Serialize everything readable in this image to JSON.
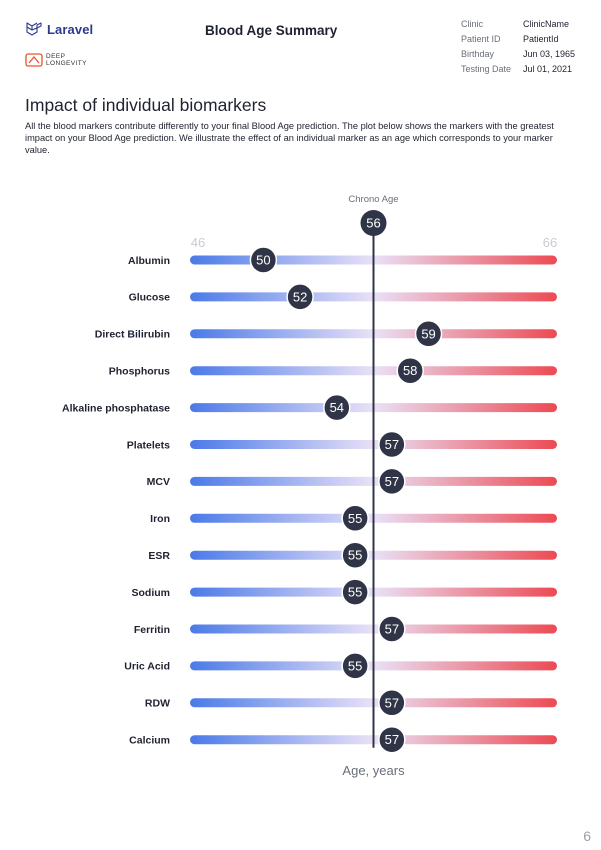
{
  "header": {
    "app_name": "Laravel",
    "partner_line1": "DEEP",
    "partner_line2": "LONGEVITY",
    "title": "Blood Age Summary"
  },
  "info": [
    {
      "label": "Clinic",
      "value": "ClinicName"
    },
    {
      "label": "Patient ID",
      "value": "PatientId"
    },
    {
      "label": "Birthday",
      "value": "Jun 03, 1965"
    },
    {
      "label": "Testing Date",
      "value": "Jul 01, 2021"
    }
  ],
  "section": {
    "title": "Impact of individual biomarkers",
    "description": "All the blood markers contribute differently to your final Blood Age prediction. The plot below shows the markers with the greatest impact on your Blood Age prediction. We illustrate the effect of an individual marker as an age which corresponds to your marker value."
  },
  "chart_data": {
    "type": "scatter",
    "chrono_label": "Chrono Age",
    "chrono_value": 56,
    "xlim": [
      46,
      66
    ],
    "xmin_label": "46",
    "xmax_label": "66",
    "xlabel": "Age, years",
    "categories": [
      "Albumin",
      "Glucose",
      "Direct Bilirubin",
      "Phosphorus",
      "Alkaline phosphatase",
      "Platelets",
      "MCV",
      "Iron",
      "ESR",
      "Sodium",
      "Ferritin",
      "Uric Acid",
      "RDW",
      "Calcium"
    ],
    "values": [
      50,
      52,
      59,
      58,
      54,
      57,
      57,
      55,
      55,
      55,
      57,
      55,
      57,
      57
    ],
    "colors": {
      "low": "#4a7ae8",
      "mid": "#e9e1f7",
      "high": "#ec4a53",
      "marker": "#2f3447",
      "chrono_line": "#2f3447"
    }
  },
  "page_number": "6"
}
